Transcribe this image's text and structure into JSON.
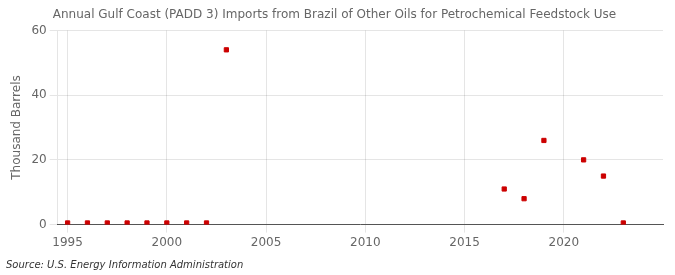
{
  "chart_data": {
    "type": "scatter",
    "title": "Annual Gulf Coast (PADD 3) Imports from Brazil of Other Oils for Petrochemical Feedstock Use",
    "y_label": "Thousand Barrels",
    "annotations": [
      "Source: U.S. Energy Information Administration"
    ],
    "x": [
      1995,
      1996,
      1997,
      1998,
      1999,
      2000,
      2001,
      2002,
      2003,
      2017,
      2018,
      2019,
      2021,
      2022,
      2023
    ],
    "values": [
      0.5,
      0.5,
      0.5,
      0.5,
      0.5,
      0.5,
      0.5,
      0.5,
      54,
      11,
      8,
      26,
      20,
      15,
      0.5
    ],
    "color": "#cc0000",
    "marker": "square",
    "xlim": [
      1994.5,
      2025
    ],
    "xticks": [
      1995,
      2000,
      2005,
      2010,
      2015,
      2020
    ],
    "ylim": [
      0,
      60
    ],
    "yticks": [
      0,
      20,
      40,
      60
    ],
    "grid": true
  }
}
